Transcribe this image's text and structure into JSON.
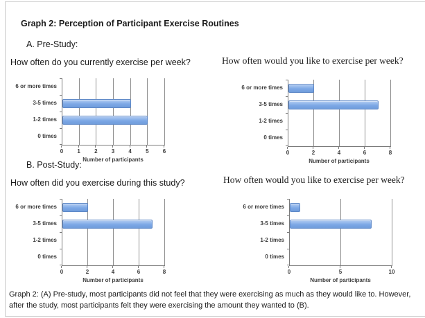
{
  "page": {
    "title": "Graph 2: Perception of Participant Exercise Routines",
    "section_a_label": "A. Pre-Study:",
    "section_b_label": "B. Post-Study:",
    "caption": "Graph 2: (A) Pre-study, most participants did not feel that they were exercising as much as they would like to. However, after the study, most participants felt they were exercising the amount they wanted to (B)."
  },
  "colors": {
    "bar_fill_top": "#b4cdf2",
    "bar_fill_mid": "#7da8e6",
    "bar_fill_bottom": "#6f9cdb",
    "bar_border": "#5e88c7",
    "grid_line": "#8f8f8f",
    "axis_line": "#7a7a7a"
  },
  "chart_data": [
    {
      "type": "bar",
      "orientation": "horizontal",
      "title": "How often do you currently exercise per week?",
      "categories": [
        "6 or more times",
        "3-5 times",
        "1-2 times",
        "0 times"
      ],
      "values": [
        0,
        4,
        5,
        0
      ],
      "xlabel": "Number of participants",
      "xlim": [
        0,
        6
      ],
      "xticks": [
        0,
        1,
        2,
        3,
        4,
        5,
        6
      ],
      "grid": true,
      "legend": "none"
    },
    {
      "type": "bar",
      "orientation": "horizontal",
      "title": "How often would you like to exercise per week?",
      "categories": [
        "6 or more times",
        "3-5 times",
        "1-2 times",
        "0 times"
      ],
      "values": [
        2,
        7,
        0,
        0
      ],
      "xlabel": "Number of participants",
      "xlim": [
        0,
        8
      ],
      "xticks": [
        0,
        2,
        4,
        6,
        8
      ],
      "grid": true,
      "legend": "none"
    },
    {
      "type": "bar",
      "orientation": "horizontal",
      "title": "How often did you exercise during this study?",
      "categories": [
        "6 or more times",
        "3-5 times",
        "1-2 times",
        "0 times"
      ],
      "values": [
        2,
        7,
        0,
        0
      ],
      "xlabel": "Number of participants",
      "xlim": [
        0,
        8
      ],
      "xticks": [
        0,
        2,
        4,
        6,
        8
      ],
      "grid": true,
      "legend": "none"
    },
    {
      "type": "bar",
      "orientation": "horizontal",
      "title": "How often would you like to exercise per week?",
      "categories": [
        "6 or more times",
        "3-5 times",
        "1-2 times",
        "0 times"
      ],
      "values": [
        1,
        8,
        0,
        0
      ],
      "xlabel": "Number of participants",
      "xlim": [
        0,
        10
      ],
      "xticks": [
        0,
        5,
        10
      ],
      "grid": true,
      "legend": "none"
    }
  ]
}
